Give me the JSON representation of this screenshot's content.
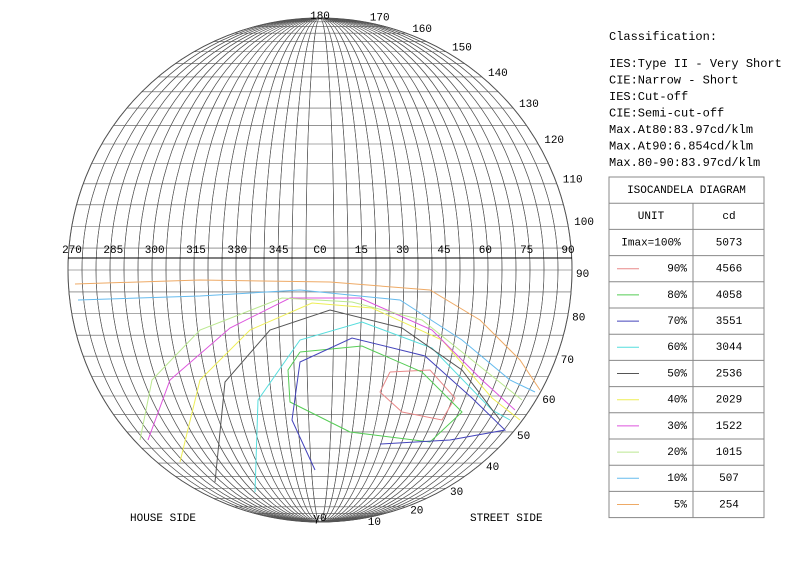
{
  "classification": {
    "title": "Classification:",
    "lines": [
      "IES:Type II - Very Short",
      "CIE:Narrow - Short",
      "IES:Cut-off",
      "CIE:Semi-cut-off",
      "Max.At80:83.97cd/klm",
      "Max.At90:6.854cd/klm",
      "Max.80-90:83.97cd/klm"
    ]
  },
  "table": {
    "title": "ISOCANDELA DIAGRAM",
    "unit_label": "UNIT",
    "unit": "cd",
    "imax_label": "Imax=100%",
    "imax": 5073,
    "rows": [
      {
        "level": "90%",
        "cd": 4566,
        "color": "#e88888"
      },
      {
        "level": "80%",
        "cd": 4058,
        "color": "#55cc55"
      },
      {
        "level": "70%",
        "cd": 3551,
        "color": "#4444bb"
      },
      {
        "level": "60%",
        "cd": 3044,
        "color": "#55dddd"
      },
      {
        "level": "50%",
        "cd": 2536,
        "color": "#555555"
      },
      {
        "level": "40%",
        "cd": 2029,
        "color": "#eeee55"
      },
      {
        "level": "30%",
        "cd": 1522,
        "color": "#dd55dd"
      },
      {
        "level": "20%",
        "cd": 1015,
        "color": "#bbe890"
      },
      {
        "level": "10%",
        "cd": 507,
        "color": "#66bbee"
      },
      {
        "level": "5%",
        "cd": 254,
        "color": "#eeaa66"
      }
    ]
  },
  "diagram": {
    "c_labels": [
      "270",
      "285",
      "300",
      "315",
      "330",
      "345",
      "C0",
      "15",
      "30",
      "45",
      "60",
      "75",
      "90"
    ],
    "top_label": "180",
    "upper_gamma_labels": [
      "170",
      "160",
      "150",
      "140",
      "130",
      "120",
      "110",
      "100"
    ],
    "lower_gamma_labels": [
      "90",
      "80",
      "70",
      "60",
      "50",
      "40",
      "30",
      "20",
      "10"
    ],
    "bottom_label": "γ0",
    "house_side": "HOUSE SIDE",
    "street_side": "STREET SIDE"
  }
}
